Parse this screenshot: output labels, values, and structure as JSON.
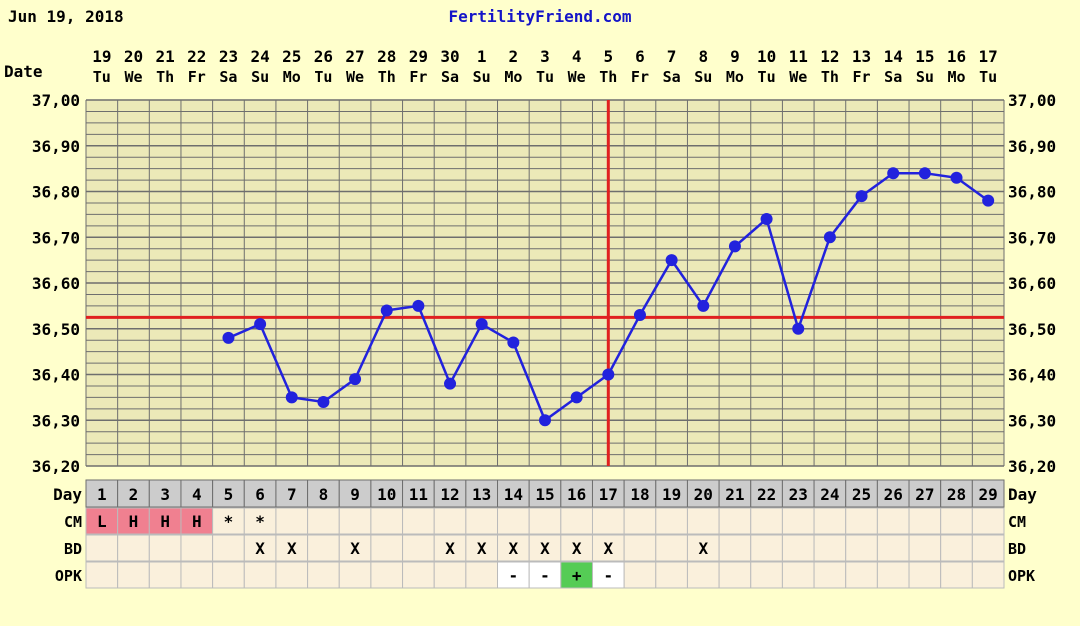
{
  "header": {
    "date": "Jun 19, 2018",
    "site": "FertilityFriend.com"
  },
  "colors": {
    "background": "#ffffcc",
    "grid_bg": "#ece9b8",
    "grid_line": "#6e6e6e",
    "temp_line": "#2222dd",
    "coverline": "#e02020",
    "site_text": "#1515c8",
    "day_bg": "#cccccc",
    "row_bg": "#faf0dc",
    "menses": "#f08090",
    "opk_positive": "#55cc55"
  },
  "labels": {
    "date_row": "Date",
    "day_row": "Day",
    "cm_row": "CM",
    "bd_row": "BD",
    "opk_row": "OPK"
  },
  "chart_data": {
    "type": "line",
    "title": "",
    "xlabel": "Day",
    "ylabel": "",
    "ylim": [
      36.2,
      37.0
    ],
    "y_ticks": [
      "37,00",
      "36,90",
      "36,80",
      "36,70",
      "36,60",
      "36,50",
      "36,40",
      "36,30",
      "36,20"
    ],
    "dates": [
      "19",
      "20",
      "21",
      "22",
      "23",
      "24",
      "25",
      "26",
      "27",
      "28",
      "29",
      "30",
      "1",
      "2",
      "3",
      "4",
      "5",
      "6",
      "7",
      "8",
      "9",
      "10",
      "11",
      "12",
      "13",
      "14",
      "15",
      "16",
      "17"
    ],
    "weekdays": [
      "Tu",
      "We",
      "Th",
      "Fr",
      "Sa",
      "Su",
      "Mo",
      "Tu",
      "We",
      "Th",
      "Fr",
      "Sa",
      "Su",
      "Mo",
      "Tu",
      "We",
      "Th",
      "Fr",
      "Sa",
      "Su",
      "Mo",
      "Tu",
      "We",
      "Th",
      "Fr",
      "Sa",
      "Su",
      "Mo",
      "Tu"
    ],
    "cycle_days": [
      "1",
      "2",
      "3",
      "4",
      "5",
      "6",
      "7",
      "8",
      "9",
      "10",
      "11",
      "12",
      "13",
      "14",
      "15",
      "16",
      "17",
      "18",
      "19",
      "20",
      "21",
      "22",
      "23",
      "24",
      "25",
      "26",
      "27",
      "28",
      "29"
    ],
    "series": [
      {
        "values": [
          null,
          null,
          null,
          null,
          36.48,
          36.51,
          36.35,
          36.34,
          36.39,
          36.54,
          36.55,
          36.38,
          36.51,
          36.47,
          36.3,
          36.35,
          36.4,
          36.53,
          36.65,
          36.55,
          36.68,
          36.74,
          36.5,
          36.7,
          36.79,
          36.84,
          36.84,
          36.83,
          36.78
        ]
      }
    ],
    "coverline": 36.525,
    "ovulation_day": 17,
    "cm": [
      "L",
      "H",
      "H",
      "H",
      "*",
      "*",
      "",
      "",
      "",
      "",
      "",
      "",
      "",
      "",
      "",
      "",
      "",
      "",
      "",
      "",
      "",
      "",
      "",
      "",
      "",
      "",
      "",
      "",
      ""
    ],
    "bd": [
      "",
      "",
      "",
      "",
      "",
      "X",
      "X",
      "",
      "X",
      "",
      "",
      "X",
      "X",
      "X",
      "X",
      "X",
      "X",
      "",
      "",
      "X",
      "",
      "",
      "",
      "",
      "",
      "",
      "",
      "",
      ""
    ],
    "opk": [
      "",
      "",
      "",
      "",
      "",
      "",
      "",
      "",
      "",
      "",
      "",
      "",
      "",
      "-",
      "-",
      "+",
      "-",
      "",
      "",
      "",
      "",
      "",
      "",
      "",
      "",
      "",
      "",
      "",
      ""
    ]
  }
}
